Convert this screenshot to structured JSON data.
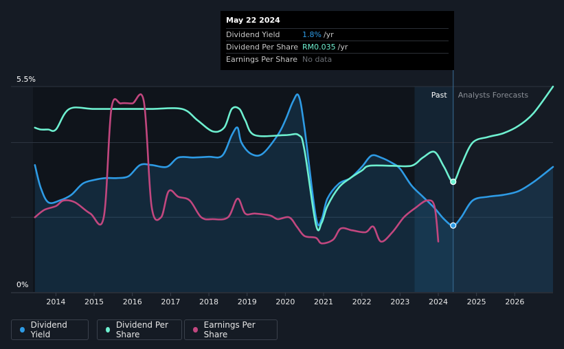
{
  "tooltip": {
    "date": "May 22 2024",
    "rows": [
      {
        "label": "Dividend Yield",
        "value": "1.8%",
        "unit": "/yr",
        "color": "#2e9be5"
      },
      {
        "label": "Dividend Per Share",
        "value": "RM0.035",
        "unit": "/yr",
        "color": "#6ef0d0"
      },
      {
        "label": "Earnings Per Share",
        "value": "No data",
        "unit": "",
        "color": "#6b6f75"
      }
    ]
  },
  "regions": {
    "past": "Past",
    "forecast": "Analysts Forecasts"
  },
  "legend": [
    {
      "label": "Dividend Yield",
      "color": "#2e9be5"
    },
    {
      "label": "Dividend Per Share",
      "color": "#6ef0d0"
    },
    {
      "label": "Earnings Per Share",
      "color": "#c2477f"
    }
  ],
  "colors": {
    "background": "#151b24",
    "past_region": "#0f141b",
    "highlight": "#1a3147",
    "gridline": "#2d3440"
  },
  "chart_data": {
    "type": "line",
    "y_labels": [
      "5.5%",
      "0%"
    ],
    "ylim": [
      0,
      5.5
    ],
    "xlim": [
      2013.4,
      2027.0
    ],
    "x_ticks": [
      "2014",
      "2015",
      "2016",
      "2017",
      "2018",
      "2019",
      "2020",
      "2021",
      "2022",
      "2023",
      "2024",
      "2025",
      "2026"
    ],
    "past_start": 2023.38,
    "today": 2024.39,
    "series": [
      {
        "name": "Dividend Yield",
        "color": "#2e9be5",
        "filled": true,
        "points": [
          [
            2013.45,
            3.4
          ],
          [
            2013.6,
            2.8
          ],
          [
            2013.8,
            2.4
          ],
          [
            2014.1,
            2.45
          ],
          [
            2014.4,
            2.6
          ],
          [
            2014.7,
            2.9
          ],
          [
            2015.0,
            3.0
          ],
          [
            2015.3,
            3.05
          ],
          [
            2015.6,
            3.05
          ],
          [
            2015.9,
            3.1
          ],
          [
            2016.2,
            3.4
          ],
          [
            2016.5,
            3.4
          ],
          [
            2016.9,
            3.35
          ],
          [
            2017.2,
            3.6
          ],
          [
            2017.6,
            3.6
          ],
          [
            2018.0,
            3.62
          ],
          [
            2018.35,
            3.65
          ],
          [
            2018.6,
            4.2
          ],
          [
            2018.75,
            4.4
          ],
          [
            2018.85,
            4.0
          ],
          [
            2019.1,
            3.7
          ],
          [
            2019.4,
            3.7
          ],
          [
            2019.8,
            4.2
          ],
          [
            2020.0,
            4.6
          ],
          [
            2020.2,
            5.1
          ],
          [
            2020.35,
            5.25
          ],
          [
            2020.5,
            4.4
          ],
          [
            2020.8,
            2.0
          ],
          [
            2020.95,
            1.95
          ],
          [
            2021.1,
            2.5
          ],
          [
            2021.4,
            2.9
          ],
          [
            2021.7,
            3.05
          ],
          [
            2022.0,
            3.35
          ],
          [
            2022.25,
            3.65
          ],
          [
            2022.5,
            3.6
          ],
          [
            2022.8,
            3.45
          ],
          [
            2023.0,
            3.3
          ],
          [
            2023.3,
            2.85
          ],
          [
            2023.6,
            2.55
          ],
          [
            2023.9,
            2.25
          ],
          [
            2024.15,
            1.95
          ],
          [
            2024.39,
            1.78
          ],
          [
            2024.6,
            2.0
          ],
          [
            2024.9,
            2.45
          ],
          [
            2025.3,
            2.55
          ],
          [
            2025.7,
            2.6
          ],
          [
            2026.1,
            2.7
          ],
          [
            2026.5,
            2.95
          ],
          [
            2027.0,
            3.35
          ]
        ]
      },
      {
        "name": "Dividend Per Share",
        "color": "#6ef0d0",
        "filled": false,
        "points": [
          [
            2013.45,
            4.4
          ],
          [
            2013.6,
            4.35
          ],
          [
            2013.8,
            4.35
          ],
          [
            2014.0,
            4.35
          ],
          [
            2014.35,
            4.9
          ],
          [
            2015.0,
            4.9
          ],
          [
            2016.0,
            4.9
          ],
          [
            2016.5,
            4.9
          ],
          [
            2017.3,
            4.9
          ],
          [
            2017.7,
            4.6
          ],
          [
            2018.1,
            4.3
          ],
          [
            2018.4,
            4.4
          ],
          [
            2018.6,
            4.9
          ],
          [
            2018.8,
            4.9
          ],
          [
            2018.95,
            4.6
          ],
          [
            2019.2,
            4.2
          ],
          [
            2020.0,
            4.2
          ],
          [
            2020.35,
            4.2
          ],
          [
            2020.5,
            3.8
          ],
          [
            2020.8,
            1.8
          ],
          [
            2020.95,
            1.85
          ],
          [
            2021.1,
            2.3
          ],
          [
            2021.4,
            2.8
          ],
          [
            2021.7,
            3.05
          ],
          [
            2022.0,
            3.25
          ],
          [
            2022.2,
            3.38
          ],
          [
            2022.8,
            3.38
          ],
          [
            2023.3,
            3.38
          ],
          [
            2023.6,
            3.6
          ],
          [
            2023.9,
            3.75
          ],
          [
            2024.15,
            3.35
          ],
          [
            2024.39,
            2.95
          ],
          [
            2024.6,
            3.4
          ],
          [
            2024.9,
            4.0
          ],
          [
            2025.3,
            4.15
          ],
          [
            2025.7,
            4.25
          ],
          [
            2026.1,
            4.45
          ],
          [
            2026.5,
            4.8
          ],
          [
            2027.0,
            5.5
          ]
        ]
      },
      {
        "name": "Earnings Per Share",
        "color": "#c2477f",
        "filled": false,
        "points": [
          [
            2013.45,
            2.0
          ],
          [
            2013.7,
            2.2
          ],
          [
            2014.0,
            2.3
          ],
          [
            2014.2,
            2.45
          ],
          [
            2014.5,
            2.4
          ],
          [
            2014.9,
            2.1
          ],
          [
            2015.25,
            2.0
          ],
          [
            2015.45,
            4.9
          ],
          [
            2015.7,
            5.05
          ],
          [
            2016.0,
            5.05
          ],
          [
            2016.3,
            5.1
          ],
          [
            2016.5,
            2.3
          ],
          [
            2016.75,
            2.0
          ],
          [
            2016.95,
            2.7
          ],
          [
            2017.2,
            2.55
          ],
          [
            2017.5,
            2.45
          ],
          [
            2017.8,
            2.0
          ],
          [
            2018.1,
            1.95
          ],
          [
            2018.5,
            2.0
          ],
          [
            2018.75,
            2.5
          ],
          [
            2018.95,
            2.1
          ],
          [
            2019.2,
            2.1
          ],
          [
            2019.6,
            2.05
          ],
          [
            2019.8,
            1.95
          ],
          [
            2020.1,
            2.0
          ],
          [
            2020.3,
            1.75
          ],
          [
            2020.5,
            1.5
          ],
          [
            2020.8,
            1.45
          ],
          [
            2020.95,
            1.3
          ],
          [
            2021.25,
            1.4
          ],
          [
            2021.45,
            1.7
          ],
          [
            2021.75,
            1.65
          ],
          [
            2022.1,
            1.6
          ],
          [
            2022.3,
            1.75
          ],
          [
            2022.5,
            1.35
          ],
          [
            2022.8,
            1.6
          ],
          [
            2023.1,
            2.0
          ],
          [
            2023.4,
            2.25
          ],
          [
            2023.7,
            2.45
          ],
          [
            2023.9,
            2.3
          ],
          [
            2024.0,
            1.35
          ]
        ]
      }
    ]
  }
}
